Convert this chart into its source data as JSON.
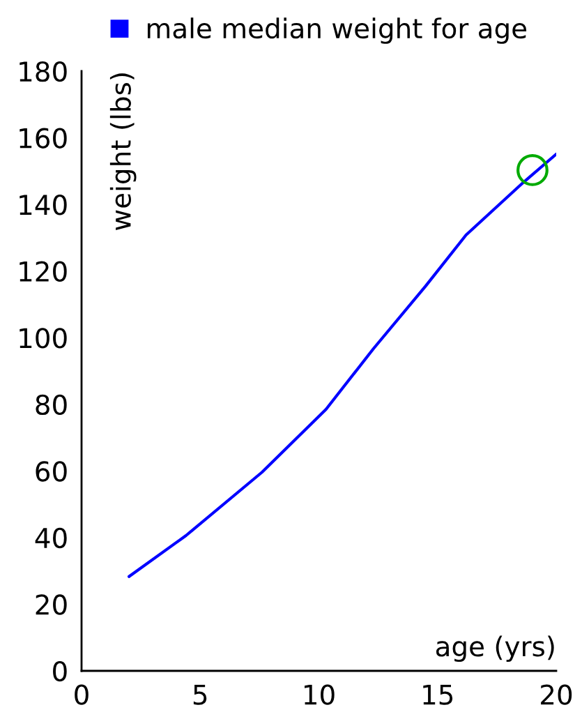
{
  "chart_data": {
    "type": "line",
    "xlabel": "age (yrs)",
    "ylabel": "weight (lbs)",
    "xlim": [
      0,
      20
    ],
    "xticks": [
      0,
      5,
      10,
      15,
      20
    ],
    "ylim": [
      0,
      180
    ],
    "yticks": [
      0,
      20,
      40,
      60,
      80,
      100,
      120,
      140,
      160,
      180
    ],
    "grid": false,
    "legend": "top",
    "series": [
      {
        "name": "male median weight for age",
        "color": "#0000ff",
        "marker": "none",
        "x": [
          2,
          4.4,
          7.6,
          10.3,
          12.3,
          14.5,
          16.2,
          18.6,
          20
        ],
        "values": [
          28.3,
          40.6,
          59.6,
          78.5,
          96.7,
          115.5,
          130.8,
          146.5,
          155.1
        ]
      },
      {
        "color": "#00aa00",
        "type": "scatter",
        "marker": "circle",
        "x": [
          19
        ],
        "values": [
          150.3
        ]
      }
    ]
  }
}
